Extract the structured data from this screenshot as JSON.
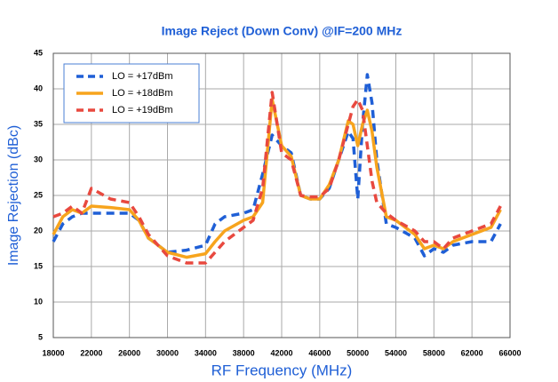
{
  "chart_data": {
    "type": "line",
    "title": "Image Reject (Down Conv) @IF=200 MHz",
    "xlabel": "RF Frequency (MHz)",
    "ylabel": "Image Rejection (dBc)",
    "x": [
      18000,
      19000,
      20000,
      21000,
      22000,
      24000,
      26000,
      27000,
      28000,
      30000,
      32000,
      34000,
      35000,
      36000,
      38000,
      39000,
      40000,
      41000,
      42000,
      43000,
      44000,
      45000,
      46000,
      47000,
      48000,
      49000,
      49500,
      50000,
      50500,
      51000,
      51500,
      52000,
      53000,
      54000,
      56000,
      57000,
      58000,
      59000,
      60000,
      62000,
      64000,
      65000
    ],
    "series": [
      {
        "name": "LO = +17dBm",
        "color": "#1f5fd6",
        "style": "dashed",
        "values": [
          18.5,
          21,
          22,
          22.5,
          22.5,
          22.5,
          22.5,
          21.5,
          19,
          17,
          17.3,
          18,
          21,
          22,
          22.5,
          23,
          28,
          33.5,
          32,
          31,
          25,
          24.5,
          24.5,
          26,
          30,
          34,
          33,
          24.5,
          35,
          42,
          38,
          30,
          21,
          20.5,
          19,
          16.5,
          17.5,
          17,
          18,
          18.5,
          18.5,
          21
        ]
      },
      {
        "name": "LO = +18dBm",
        "color": "#f7a41d",
        "style": "solid",
        "values": [
          19.5,
          22,
          23,
          22.5,
          23.5,
          23.3,
          23,
          21.5,
          19,
          17,
          16.3,
          16.8,
          18.5,
          20,
          21.5,
          22,
          24,
          38.5,
          32,
          30.5,
          25,
          24.5,
          24.5,
          26.5,
          30,
          35.5,
          35,
          32,
          35,
          37,
          34,
          29,
          22,
          21.5,
          19.5,
          17.5,
          18,
          17.5,
          18.5,
          19.5,
          20.5,
          23
        ]
      },
      {
        "name": "LO = +19dBm",
        "color": "#e8493f",
        "style": "dashed",
        "values": [
          22,
          22.5,
          23.5,
          22.5,
          26,
          24.5,
          24,
          22,
          19.5,
          16.5,
          15.5,
          15.5,
          17,
          18.5,
          20.5,
          21.5,
          26,
          39.5,
          31,
          30,
          25,
          24.8,
          24.8,
          26,
          30,
          35,
          37.5,
          38.5,
          37,
          32,
          27,
          24,
          22.5,
          21.5,
          20,
          18.5,
          18.5,
          17.5,
          19,
          20,
          21,
          23.5
        ]
      }
    ],
    "xlim": [
      18000,
      66000
    ],
    "xticks": [
      18000,
      22000,
      26000,
      30000,
      34000,
      38000,
      42000,
      46000,
      50000,
      54000,
      58000,
      62000,
      66000
    ],
    "ylim": [
      5,
      45
    ],
    "yticks": [
      5,
      10,
      15,
      20,
      25,
      30,
      35,
      40,
      45
    ],
    "grid": true,
    "legend": "upper-left"
  }
}
